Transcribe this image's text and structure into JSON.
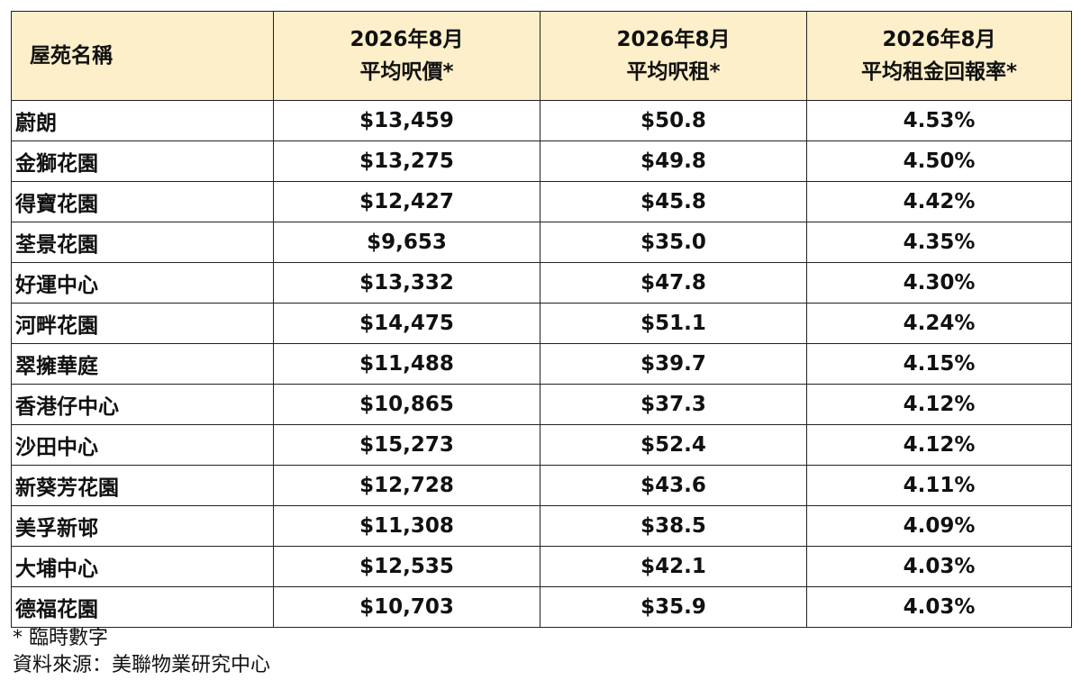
{
  "table": {
    "headers": {
      "name": "屋苑名稱",
      "price": [
        "2026年8月",
        "平均呎價*"
      ],
      "rent": [
        "2026年8月",
        "平均呎租*"
      ],
      "yield": [
        "2026年8月",
        "平均租金回報率*"
      ]
    },
    "rows": [
      {
        "name": "蔚朗",
        "price": "$13,459",
        "rent": "$50.8",
        "yield": "4.53%"
      },
      {
        "name": "金獅花園",
        "price": "$13,275",
        "rent": "$49.8",
        "yield": "4.50%"
      },
      {
        "name": "得寶花園",
        "price": "$12,427",
        "rent": "$45.8",
        "yield": "4.42%"
      },
      {
        "name": "荃景花園",
        "price": "$9,653",
        "rent": "$35.0",
        "yield": "4.35%"
      },
      {
        "name": "好運中心",
        "price": "$13,332",
        "rent": "$47.8",
        "yield": "4.30%"
      },
      {
        "name": "河畔花園",
        "price": "$14,475",
        "rent": "$51.1",
        "yield": "4.24%"
      },
      {
        "name": "翠擁華庭",
        "price": "$11,488",
        "rent": "$39.7",
        "yield": "4.15%"
      },
      {
        "name": "香港仔中心",
        "price": "$10,865",
        "rent": "$37.3",
        "yield": "4.12%"
      },
      {
        "name": "沙田中心",
        "price": "$15,273",
        "rent": "$52.4",
        "yield": "4.12%"
      },
      {
        "name": "新葵芳花園",
        "price": "$12,728",
        "rent": "$43.6",
        "yield": "4.11%"
      },
      {
        "name": "美孚新邨",
        "price": "$11,308",
        "rent": "$38.5",
        "yield": "4.09%"
      },
      {
        "name": "大埔中心",
        "price": "$12,535",
        "rent": "$42.1",
        "yield": "4.03%"
      },
      {
        "name": "德福花園",
        "price": "$10,703",
        "rent": "$35.9",
        "yield": "4.03%"
      }
    ]
  },
  "footnotes": {
    "provisional": "* 臨時數字",
    "source": "資料來源：美聯物業研究中心"
  },
  "colors": {
    "header_background": "#fcefc9",
    "border": "#222222"
  }
}
